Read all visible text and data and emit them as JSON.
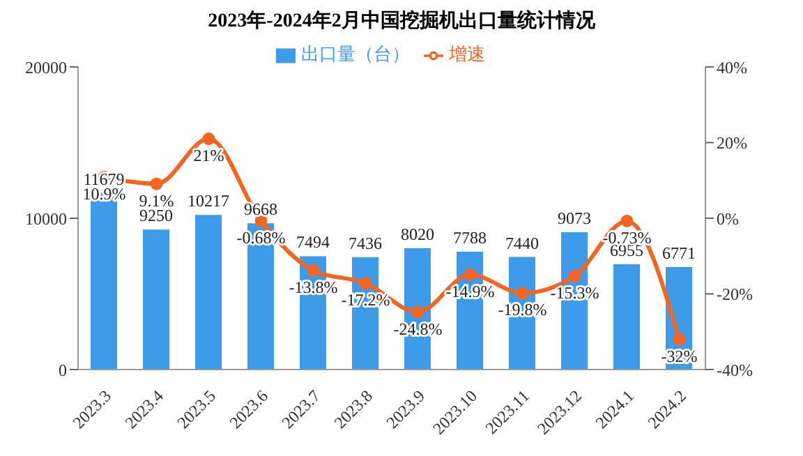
{
  "chart_data": {
    "type": "bar",
    "title": "2023年-2024年2月中国挖掘机出口量统计情况",
    "categories": [
      "2023.3",
      "2023.4",
      "2023.5",
      "2023.6",
      "2023.7",
      "2023.8",
      "2023.9",
      "2023.10",
      "2023.11",
      "2023.12",
      "2024.1",
      "2024.2"
    ],
    "series": [
      {
        "name": "出口量（台）",
        "color": "#3d9be9",
        "values": [
          11679,
          9250,
          10217,
          9668,
          7494,
          7436,
          8020,
          7788,
          7440,
          9073,
          6955,
          6771
        ],
        "value_labels": [
          "11679",
          "9250",
          "10217",
          "9668",
          "7494",
          "7436",
          "8020",
          "7788",
          "7440",
          "9073",
          "6955",
          "6771"
        ]
      },
      {
        "name": "增速",
        "type": "line",
        "axis": "y2",
        "color": "#f26522",
        "values": [
          10.9,
          9.1,
          21,
          -0.68,
          -13.8,
          -17.2,
          -24.8,
          -14.9,
          -19.8,
          -15.3,
          -0.73,
          -32
        ],
        "value_labels": [
          "10.9%",
          "9.1%",
          "21%",
          "-0.68%",
          "-13.8%",
          "-17.2%",
          "-24.8%",
          "-14.9%",
          "-19.8%",
          "-15.3%",
          "-0.73%",
          "-32%"
        ]
      }
    ],
    "ylim": [
      0,
      20000
    ],
    "yticks": [
      0,
      10000,
      20000
    ],
    "y2lim": [
      -40,
      40
    ],
    "y2ticks": [
      {
        "value": -40,
        "label": "-40%"
      },
      {
        "value": -20,
        "label": "-20%"
      },
      {
        "value": 0,
        "label": "0%"
      },
      {
        "value": 20,
        "label": "20%"
      },
      {
        "value": 40,
        "label": "40%"
      }
    ],
    "marker": "circle",
    "legend": "top"
  }
}
